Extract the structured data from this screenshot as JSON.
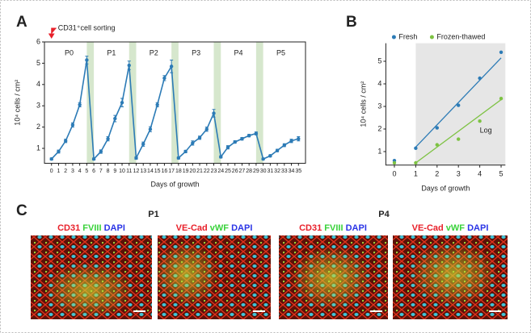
{
  "chart_data": [
    {
      "type": "line",
      "panel_label": "A",
      "x": [
        0,
        1,
        2,
        3,
        4,
        5,
        6,
        7,
        8,
        9,
        10,
        11,
        12,
        13,
        14,
        15,
        16,
        17,
        18,
        19,
        20,
        21,
        22,
        23,
        24,
        25,
        26,
        27,
        28,
        29,
        30,
        31,
        32,
        33,
        34,
        35
      ],
      "series": [
        {
          "color": "#2c7bb6",
          "values": [
            0.5,
            0.85,
            1.35,
            2.1,
            3.05,
            5.15,
            0.5,
            0.85,
            1.45,
            2.4,
            3.15,
            4.9,
            0.55,
            1.2,
            1.9,
            3.05,
            4.3,
            4.85,
            0.55,
            0.85,
            1.25,
            1.5,
            1.9,
            2.65,
            0.6,
            1.05,
            1.3,
            1.45,
            1.6,
            1.7,
            0.5,
            0.65,
            0.9,
            1.15,
            1.35,
            1.45
          ],
          "errors": [
            0.05,
            0.07,
            0.08,
            0.1,
            0.1,
            0.18,
            0.05,
            0.08,
            0.1,
            0.15,
            0.2,
            0.2,
            0.06,
            0.1,
            0.12,
            0.1,
            0.12,
            0.3,
            0.05,
            0.06,
            0.1,
            0.08,
            0.1,
            0.18,
            0.05,
            0.08,
            0.06,
            0.06,
            0.06,
            0.07,
            0.04,
            0.05,
            0.06,
            0.07,
            0.08,
            0.1
          ]
        }
      ],
      "xlabel": "Days of growth",
      "ylabel": "10⁴ cells / cm²",
      "xlim": [
        -1,
        36
      ],
      "ylim": [
        0.3,
        6
      ],
      "xticks": [
        0,
        1,
        2,
        3,
        4,
        5,
        6,
        7,
        8,
        9,
        10,
        11,
        12,
        13,
        14,
        15,
        16,
        17,
        18,
        19,
        20,
        21,
        22,
        23,
        24,
        25,
        26,
        27,
        28,
        29,
        30,
        31,
        32,
        33,
        34,
        35
      ],
      "yticks": [
        1,
        2,
        3,
        4,
        5,
        6
      ],
      "shaded_spans": [
        [
          5,
          6
        ],
        [
          11,
          12
        ],
        [
          17,
          18
        ],
        [
          23,
          24
        ],
        [
          29,
          30
        ]
      ],
      "span_color": "#d6e7cd",
      "span_labels": [
        "P0",
        "P1",
        "P2",
        "P3",
        "P4",
        "P5"
      ],
      "annotation": {
        "text": "CD31⁺cell sorting",
        "color": "#e8202a"
      }
    },
    {
      "type": "scatter",
      "panel_label": "B",
      "x": [
        0,
        1,
        2,
        3,
        4,
        5
      ],
      "series": [
        {
          "name": "Fresh",
          "color": "#2c7bb6",
          "values": [
            0.6,
            1.15,
            2.05,
            3.05,
            4.25,
            5.4
          ],
          "trend": {
            "x": [
              1,
              5
            ],
            "values": [
              1.2,
              5.15
            ]
          }
        },
        {
          "name": "Frozen-thawed",
          "color": "#7dc242",
          "values": [
            0.5,
            0.5,
            1.3,
            1.55,
            2.35,
            3.35
          ],
          "trend": {
            "x": [
              1,
              5
            ],
            "values": [
              0.5,
              3.3
            ]
          }
        }
      ],
      "xlabel": "Days of growth",
      "ylabel": "10⁴ cells / cm²",
      "xlim": [
        -0.4,
        5.2
      ],
      "ylim": [
        0.4,
        5.8
      ],
      "xticks": [
        0,
        1,
        2,
        3,
        4,
        5
      ],
      "yticks": [
        1,
        2,
        3,
        4,
        5
      ],
      "shaded_span": [
        1,
        5.2
      ],
      "span_color": "#e6e6e6",
      "annotation": {
        "text": "Log",
        "color": "#7dc242"
      }
    }
  ],
  "panel_c": {
    "label": "C",
    "passages": [
      "P1",
      "P4"
    ],
    "stains": [
      [
        "CD31",
        "FVIII",
        "DAPI"
      ],
      [
        "VE-Cad",
        "vWF",
        "DAPI"
      ]
    ]
  }
}
